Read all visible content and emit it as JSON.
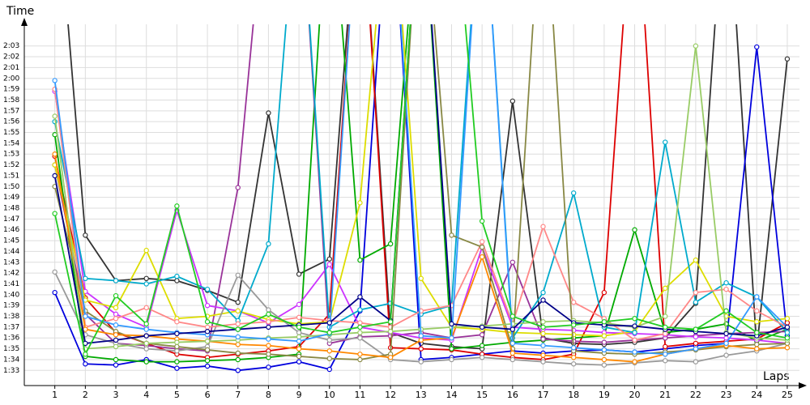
{
  "chart_data": {
    "type": "line",
    "xlabel": "Laps",
    "ylabel": "Time",
    "xlim": [
      0,
      25.4
    ],
    "xticks": [
      1,
      2,
      3,
      4,
      5,
      6,
      7,
      8,
      9,
      10,
      11,
      12,
      13,
      14,
      15,
      16,
      17,
      18,
      19,
      20,
      21,
      22,
      23,
      24,
      25
    ],
    "ylim": [
      91.6,
      125
    ],
    "yticks": [
      {
        "value": 93,
        "label": "1:33"
      },
      {
        "value": 94,
        "label": "1:34"
      },
      {
        "value": 95,
        "label": "1:35"
      },
      {
        "value": 96,
        "label": "1:36"
      },
      {
        "value": 97,
        "label": "1:37"
      },
      {
        "value": 98,
        "label": "1:38"
      },
      {
        "value": 99,
        "label": "1:39"
      },
      {
        "value": 100,
        "label": "1:40"
      },
      {
        "value": 101,
        "label": "1:41"
      },
      {
        "value": 102,
        "label": "1:42"
      },
      {
        "value": 103,
        "label": "1:43"
      },
      {
        "value": 104,
        "label": "1:44"
      },
      {
        "value": 105,
        "label": "1:45"
      },
      {
        "value": 106,
        "label": "1:46"
      },
      {
        "value": 107,
        "label": "1:47"
      },
      {
        "value": 108,
        "label": "1:48"
      },
      {
        "value": 109,
        "label": "1:49"
      },
      {
        "value": 110,
        "label": "1:50"
      },
      {
        "value": 111,
        "label": "1:51"
      },
      {
        "value": 112,
        "label": "1:52"
      },
      {
        "value": 113,
        "label": "1:53"
      },
      {
        "value": 114,
        "label": "1:54"
      },
      {
        "value": 115,
        "label": "1:55"
      },
      {
        "value": 116,
        "label": "1:56"
      },
      {
        "value": 117,
        "label": "1:57"
      },
      {
        "value": 118,
        "label": "1:58"
      },
      {
        "value": 119,
        "label": "1:59"
      },
      {
        "value": 120,
        "label": "2:00"
      },
      {
        "value": 121,
        "label": "2:01"
      },
      {
        "value": 122,
        "label": "2:02"
      },
      {
        "value": 123,
        "label": "2:03"
      }
    ],
    "grid": true,
    "series": [
      {
        "color": "#333333",
        "values": [
          140,
          105.5,
          101.3,
          101.5,
          101.3,
          100.4,
          99.3,
          116.8,
          101.9,
          103.3,
          140,
          96.5,
          95.5,
          95.2,
          95.0,
          117.9,
          96.0,
          95.5,
          95.4,
          95.6,
          96.0,
          99.2,
          140,
          95.0,
          121.8
        ]
      },
      {
        "color": "#0000dd",
        "values": [
          100.2,
          93.6,
          93.5,
          94.0,
          93.2,
          93.4,
          93.0,
          93.3,
          93.8,
          93.1,
          98.5,
          140,
          94.0,
          94.2,
          94.5,
          94.8,
          94.6,
          94.8,
          94.9,
          94.7,
          95.0,
          95.3,
          95.5,
          122.9,
          96.2
        ]
      },
      {
        "color": "#dd0000",
        "values": [
          112.8,
          99.7,
          96.5,
          95.5,
          94.5,
          94.2,
          94.5,
          94.8,
          95.2,
          98.2,
          140,
          95.1,
          95.0,
          94.9,
          94.5,
          94.2,
          94.0,
          94.5,
          100.2,
          140,
          95.2,
          95.5,
          95.7,
          95.9,
          97.4
        ]
      },
      {
        "color": "#00aa00",
        "values": [
          114.8,
          94.3,
          94.0,
          93.8,
          93.8,
          93.9,
          94.0,
          94.2,
          94.5,
          140,
          103.2,
          104.7,
          140,
          95.0,
          95.3,
          95.6,
          95.8,
          96.0,
          96.2,
          106.0,
          96.5,
          96.8,
          97.3,
          95.7,
          96.8
        ]
      },
      {
        "color": "#993399",
        "values": [
          112.0,
          98.2,
          95.5,
          95.3,
          95.0,
          94.8,
          109.9,
          140,
          140,
          95.5,
          96.1,
          96.2,
          96.5,
          96.0,
          96.3,
          103.0,
          95.9,
          95.7,
          95.6,
          95.8,
          96.0,
          96.2,
          96.4,
          96.5,
          96.6
        ]
      },
      {
        "color": "#cc33ff",
        "values": [
          118.8,
          100.3,
          98.2,
          97.0,
          107.8,
          99.0,
          98.5,
          97.4,
          99.1,
          102.8,
          97.0,
          96.5,
          96.0,
          95.8,
          104.4,
          97.0,
          96.8,
          96.7,
          96.5,
          96.4,
          96.3,
          96.1,
          96.0,
          95.8,
          95.5
        ]
      },
      {
        "color": "#dddd00",
        "values": [
          112.0,
          99.5,
          98.8,
          104.1,
          97.8,
          98.0,
          98.5,
          97.7,
          97.3,
          97.5,
          108.5,
          140,
          101.5,
          97.0,
          96.8,
          96.5,
          96.4,
          96.3,
          96.2,
          96.6,
          100.6,
          103.2,
          98.0,
          97.5,
          97.8
        ]
      },
      {
        "color": "#00aacc",
        "values": [
          116.0,
          101.5,
          101.3,
          101.0,
          101.7,
          100.5,
          97.6,
          104.7,
          140,
          97.0,
          98.6,
          99.2,
          98.2,
          99.0,
          140,
          96.0,
          100.2,
          109.4,
          97.0,
          96.5,
          114.1,
          99.3,
          101.1,
          99.8,
          96.5
        ]
      },
      {
        "color": "#999999",
        "values": [
          102.1,
          96.3,
          95.5,
          95.0,
          94.8,
          95.2,
          101.8,
          98.6,
          96.5,
          95.8,
          96.0,
          94.0,
          93.8,
          94.0,
          94.2,
          94.0,
          93.8,
          93.6,
          93.5,
          93.7,
          93.9,
          93.8,
          94.4,
          94.8,
          95.5
        ]
      },
      {
        "color": "#ff8888",
        "values": [
          119.0,
          97.0,
          97.8,
          98.8,
          97.5,
          97.0,
          97.3,
          97.5,
          97.9,
          97.6,
          97.4,
          97.0,
          98.5,
          99.0,
          104.9,
          97.3,
          106.3,
          99.3,
          97.8,
          95.8,
          96.4,
          100.2,
          100.5,
          98.5,
          97.0
        ]
      },
      {
        "color": "#888844",
        "values": [
          110.0,
          98.5,
          96.6,
          95.5,
          95.2,
          94.9,
          94.6,
          94.5,
          94.3,
          94.1,
          94.0,
          94.5,
          140,
          105.5,
          104.4,
          95.0,
          140,
          94.8,
          94.6,
          94.5,
          94.7,
          94.9,
          95.2,
          95.4,
          95.5
        ]
      },
      {
        "color": "#ff8800",
        "values": [
          113.0,
          96.8,
          96.3,
          96.2,
          95.9,
          95.7,
          95.4,
          95.3,
          95.0,
          94.8,
          94.5,
          94.2,
          95.8,
          96.0,
          103.5,
          94.6,
          94.4,
          94.2,
          94.0,
          93.8,
          94.5,
          95.0,
          95.3,
          95.0,
          95.1
        ]
      },
      {
        "color": "#99cc66",
        "values": [
          116.5,
          95.0,
          95.2,
          95.5,
          95.6,
          95.7,
          95.8,
          96.0,
          96.1,
          96.3,
          96.5,
          96.6,
          96.8,
          97.0,
          97.1,
          97.3,
          97.5,
          97.6,
          97.4,
          97.0,
          98.0,
          123.0,
          96.5,
          96.0,
          95.8
        ]
      },
      {
        "color": "#3399ff",
        "values": [
          119.8,
          98.0,
          97.2,
          96.8,
          96.5,
          96.3,
          96.1,
          95.9,
          95.7,
          96.4,
          140,
          140,
          96.2,
          96.0,
          140,
          95.5,
          95.3,
          95.1,
          94.9,
          94.7,
          94.5,
          95.0,
          95.5,
          99.8,
          97.0
        ]
      },
      {
        "color": "#000088",
        "values": [
          111.0,
          95.5,
          95.8,
          96.2,
          96.4,
          96.6,
          96.8,
          97.0,
          97.2,
          97.4,
          99.8,
          97.6,
          140,
          97.3,
          97.0,
          96.8,
          99.5,
          97.4,
          97.2,
          97.1,
          96.8,
          96.6,
          96.4,
          96.2,
          97.0
        ]
      },
      {
        "color": "#22cc22",
        "values": [
          107.5,
          94.5,
          99.9,
          97.3,
          108.2,
          97.5,
          96.8,
          98.2,
          97.0,
          96.5,
          97.0,
          97.5,
          140,
          140,
          106.8,
          98.0,
          97.0,
          97.2,
          97.5,
          97.8,
          97.0,
          96.8,
          98.5,
          96.5,
          96.0
        ]
      }
    ]
  }
}
